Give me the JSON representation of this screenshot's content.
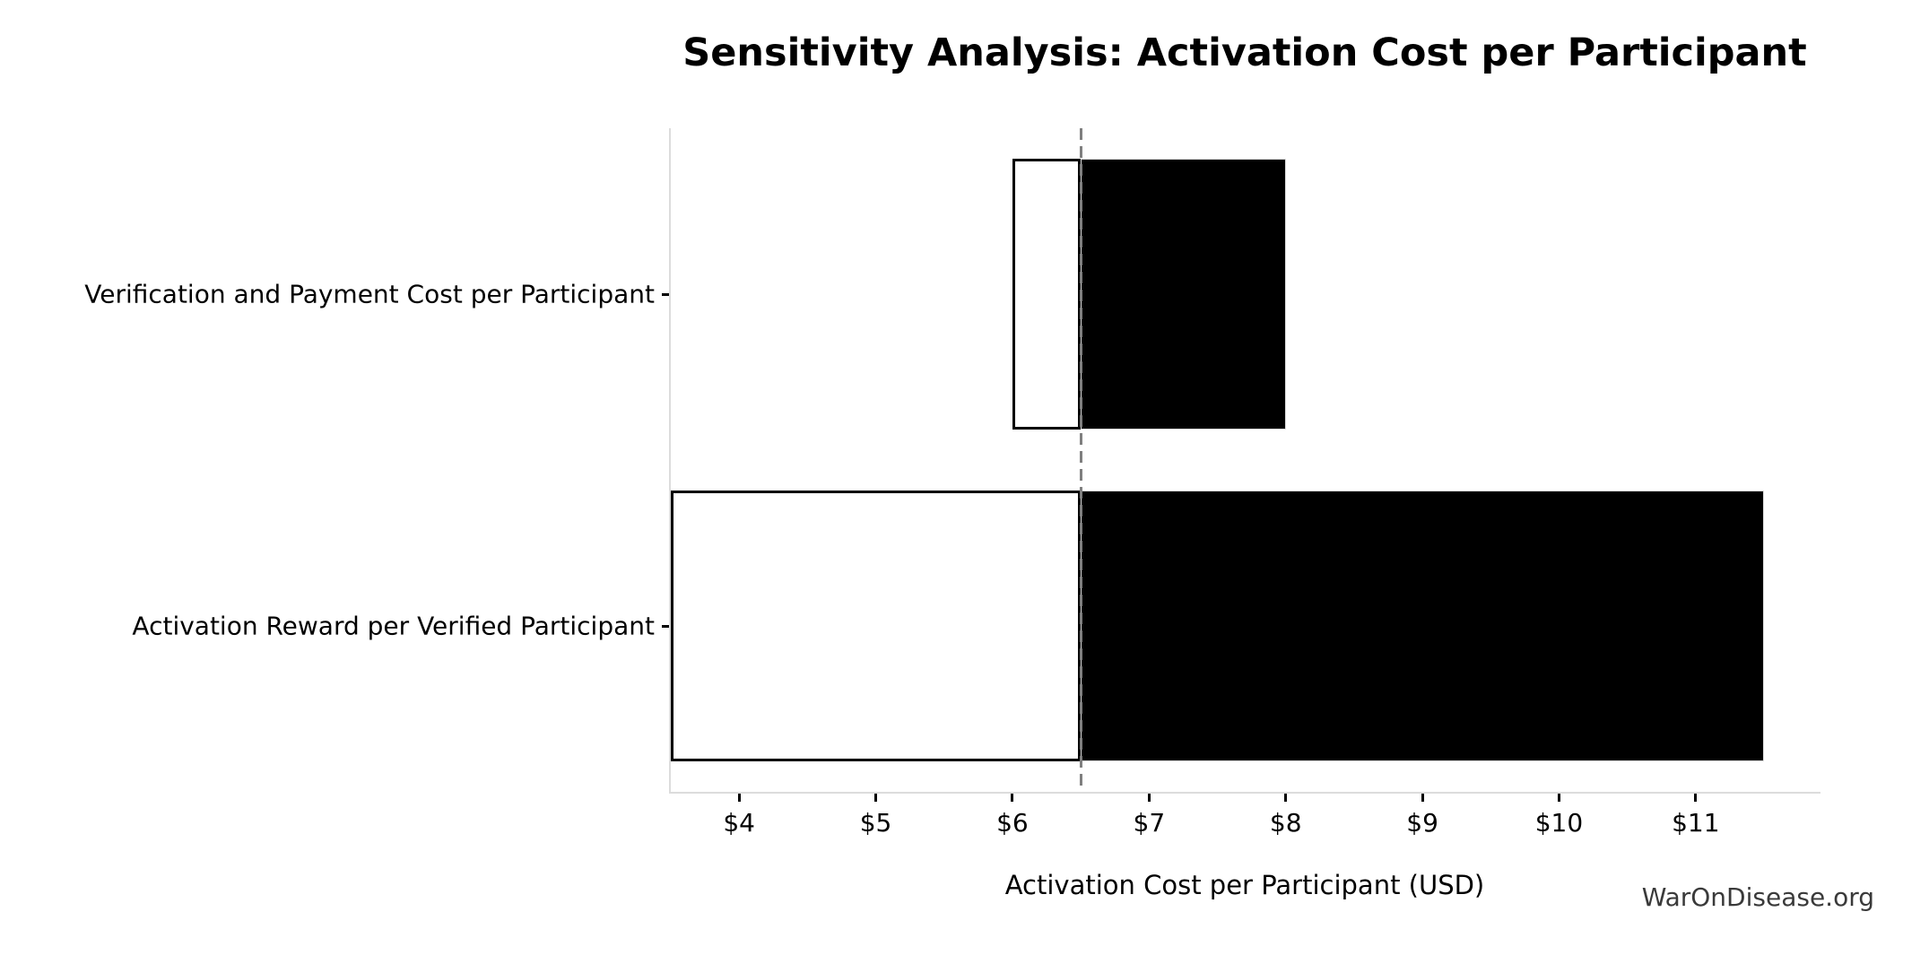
{
  "title": "Sensitivity Analysis: Activation Cost per Participant",
  "watermark": "WarOnDisease.org",
  "chart_data": {
    "type": "bar",
    "subtype": "tornado-horizontal",
    "title": "Sensitivity Analysis: Activation Cost per Participant",
    "xlabel": "Activation Cost per Participant (USD)",
    "ylabel": "",
    "baseline": 6.5,
    "xlim": [
      3.5,
      11.9
    ],
    "grid": false,
    "legend": "none",
    "categories": [
      "Verification and Payment Cost per Participant",
      "Activation Reward per Verified Participant"
    ],
    "series": [
      {
        "name": "low",
        "values": [
          6.0,
          3.5
        ]
      },
      {
        "name": "high",
        "values": [
          8.0,
          11.5
        ]
      }
    ],
    "xticks": [
      4,
      5,
      6,
      7,
      8,
      9,
      10,
      11
    ],
    "xtick_labels": [
      "$4",
      "$5",
      "$6",
      "$7",
      "$8",
      "$9",
      "$10",
      "$11"
    ],
    "colors": {
      "low_fill": "#ffffff",
      "high_fill": "#000000",
      "bar_edge": "#000000",
      "baseline_line": "#7f7f7f",
      "spine": "#dcdcdc",
      "tick": "#000000",
      "text": "#000000",
      "watermark_text": "#3a3a3a"
    }
  }
}
